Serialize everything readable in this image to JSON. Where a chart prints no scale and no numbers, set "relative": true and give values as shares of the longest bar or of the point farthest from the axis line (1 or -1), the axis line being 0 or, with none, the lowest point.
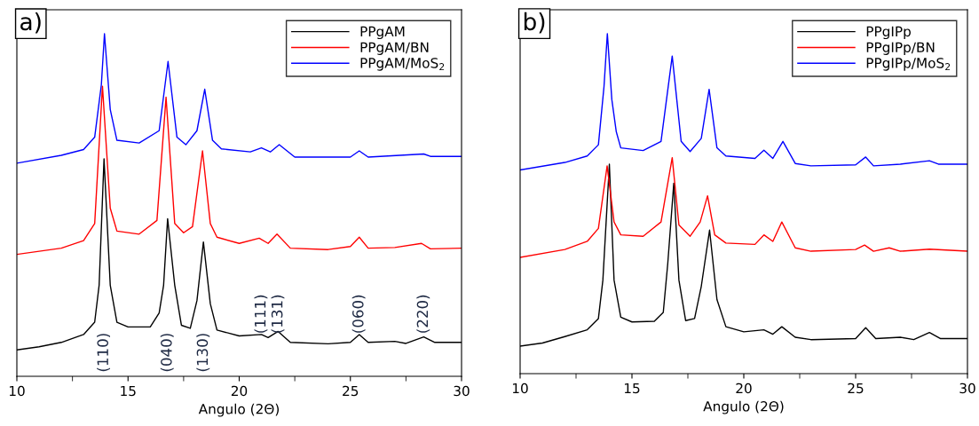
{
  "chart_data": [
    {
      "type": "line",
      "title": "a)",
      "xlabel": "Angulo (2Θ)",
      "relative": true,
      "legend": "top right",
      "grid": false,
      "tick_labels": "x",
      "marker": "none",
      "line_style": "solid",
      "xlim": [
        10,
        30
      ],
      "xticks": [
        10,
        {
          "value": 12.5,
          "label": null
        },
        15,
        {
          "value": 17.5,
          "label": null
        },
        20,
        {
          "value": 22.5,
          "label": null
        },
        25,
        {
          "value": 27.5,
          "label": null
        },
        30
      ],
      "series": [
        {
          "name": "PPgAM",
          "color": "#000000",
          "x": [
            10,
            11,
            12,
            13,
            13.5,
            13.7,
            13.92,
            14.2,
            14.5,
            15,
            16,
            16.4,
            16.6,
            16.78,
            17.1,
            17.4,
            17.8,
            18.1,
            18.39,
            18.7,
            19,
            20,
            21,
            21.3,
            21.75,
            22.3,
            24,
            25,
            25.4,
            25.8,
            27,
            27.5,
            28.3,
            28.8,
            30
          ],
          "values": [
            0.077,
            0.086,
            0.099,
            0.122,
            0.158,
            0.266,
            0.635,
            0.266,
            0.158,
            0.144,
            0.144,
            0.185,
            0.266,
            0.46,
            0.266,
            0.149,
            0.14,
            0.221,
            0.392,
            0.212,
            0.135,
            0.118,
            0.122,
            0.113,
            0.131,
            0.099,
            0.095,
            0.099,
            0.122,
            0.099,
            0.102,
            0.096,
            0.115,
            0.099,
            0.099
          ]
        },
        {
          "name": "PPgAM/BN",
          "color": "#ff0000",
          "x": [
            10,
            12,
            13,
            13.5,
            13.85,
            14.2,
            14.5,
            15.5,
            16.3,
            16.71,
            17.1,
            17.5,
            17.9,
            18.35,
            18.7,
            19,
            20,
            20.9,
            21.3,
            21.7,
            22.3,
            24,
            25,
            25.4,
            25.8,
            27,
            28.2,
            28.6,
            30
          ],
          "values": [
            0.356,
            0.374,
            0.396,
            0.446,
            0.847,
            0.491,
            0.424,
            0.415,
            0.455,
            0.815,
            0.446,
            0.419,
            0.437,
            0.658,
            0.446,
            0.406,
            0.388,
            0.403,
            0.388,
            0.415,
            0.374,
            0.37,
            0.379,
            0.406,
            0.374,
            0.376,
            0.388,
            0.372,
            0.374
          ]
        },
        {
          "name": "PPgAM/MoS$_{2}$",
          "color": "#0000ff",
          "x": [
            10,
            12,
            13,
            13.5,
            13.8,
            13.94,
            14.2,
            14.5,
            15.5,
            16.4,
            16.8,
            17.2,
            17.6,
            18.1,
            18.45,
            18.8,
            19.2,
            20.5,
            21,
            21.4,
            21.8,
            22.5,
            25,
            25.4,
            25.8,
            28.3,
            28.6,
            30
          ],
          "values": [
            0.622,
            0.645,
            0.662,
            0.698,
            0.851,
            1.0,
            0.779,
            0.689,
            0.681,
            0.717,
            0.919,
            0.698,
            0.676,
            0.717,
            0.838,
            0.689,
            0.664,
            0.655,
            0.667,
            0.655,
            0.676,
            0.64,
            0.64,
            0.658,
            0.64,
            0.649,
            0.642,
            0.642
          ]
        }
      ],
      "annotations": [
        "(110)",
        "(040)",
        "(130)",
        "(111)",
        "(131)",
        "(060)",
        "(220)"
      ]
    },
    {
      "type": "line",
      "title": "b)",
      "xlabel": "Angulo (2Θ)",
      "relative": true,
      "legend": "top right",
      "grid": false,
      "tick_labels": "x",
      "marker": "none",
      "line_style": "solid",
      "xlim": [
        10,
        30
      ],
      "xticks": [
        10,
        {
          "value": 12.5,
          "label": null
        },
        15,
        {
          "value": 17.5,
          "label": null
        },
        20,
        {
          "value": 22.5,
          "label": null
        },
        25,
        {
          "value": 27.5,
          "label": null
        },
        30
      ],
      "series": [
        {
          "name": "PPgIPp",
          "color": "#000000",
          "x": [
            10,
            11,
            12,
            13,
            13.5,
            13.7,
            13.99,
            14.2,
            14.5,
            15,
            16,
            16.4,
            16.6,
            16.87,
            17.1,
            17.4,
            17.8,
            18.1,
            18.47,
            18.8,
            19.2,
            20,
            20.9,
            21.3,
            21.7,
            22.3,
            23,
            25,
            25.45,
            25.9,
            27,
            27.6,
            28.3,
            28.8,
            30
          ],
          "values": [
            0.081,
            0.09,
            0.109,
            0.129,
            0.162,
            0.275,
            0.616,
            0.275,
            0.166,
            0.152,
            0.154,
            0.18,
            0.323,
            0.56,
            0.275,
            0.156,
            0.162,
            0.257,
            0.422,
            0.218,
            0.138,
            0.123,
            0.129,
            0.116,
            0.138,
            0.107,
            0.1,
            0.103,
            0.135,
            0.103,
            0.107,
            0.1,
            0.121,
            0.103,
            0.103
          ]
        },
        {
          "name": "PPgIPp/BN",
          "color": "#ff0000",
          "x": [
            10,
            12,
            13,
            13.5,
            13.89,
            14.2,
            14.5,
            15.5,
            16.3,
            16.8,
            17.1,
            17.6,
            18.05,
            18.38,
            18.7,
            19.2,
            20.5,
            20.9,
            21.3,
            21.7,
            22.3,
            23,
            25,
            25.4,
            25.8,
            26.5,
            27,
            28.3,
            30
          ],
          "values": [
            0.342,
            0.365,
            0.389,
            0.427,
            0.611,
            0.446,
            0.408,
            0.404,
            0.446,
            0.635,
            0.437,
            0.404,
            0.446,
            0.523,
            0.408,
            0.384,
            0.38,
            0.408,
            0.389,
            0.446,
            0.37,
            0.36,
            0.365,
            0.378,
            0.36,
            0.37,
            0.36,
            0.366,
            0.36
          ]
        },
        {
          "name": "PPgIPp/MoS$_{2}$",
          "color": "#0000ff",
          "x": [
            10,
            12,
            13,
            13.5,
            13.75,
            13.9,
            14.1,
            14.3,
            14.5,
            15.5,
            16.3,
            16.8,
            17.2,
            17.6,
            18.1,
            18.45,
            18.8,
            19.2,
            20.5,
            20.9,
            21.3,
            21.75,
            22.3,
            23,
            25,
            25.45,
            25.8,
            27,
            28.3,
            28.7,
            30
          ],
          "values": [
            0.599,
            0.621,
            0.64,
            0.673,
            0.844,
            1.0,
            0.806,
            0.711,
            0.664,
            0.656,
            0.683,
            0.934,
            0.683,
            0.653,
            0.692,
            0.836,
            0.664,
            0.64,
            0.633,
            0.657,
            0.633,
            0.683,
            0.618,
            0.611,
            0.614,
            0.637,
            0.611,
            0.616,
            0.626,
            0.616,
            0.616
          ]
        }
      ]
    }
  ]
}
